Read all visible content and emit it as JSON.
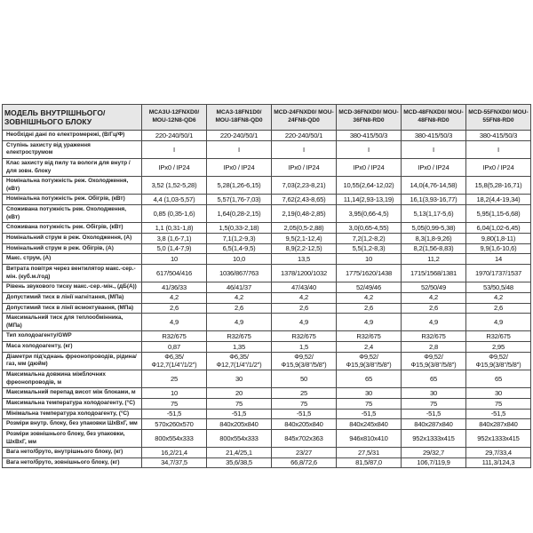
{
  "table": {
    "header": {
      "label": "МОДЕЛЬ ВНУТРІШНЬОГО/ЗОВНІШНЬОГО БЛОКУ",
      "models": [
        "MCA3U-12FNXD0/ MOU-12N8-QD6",
        "MCA3-18FN1D0/ MOU-18FN8-QD0",
        "MCD-24FNXD0/ MOU-24FN8-QD0",
        "MCD-36FNXD0/ MOU-36FN8-RD0",
        "MCD-48FNXD0/ MOU-48FN8-RD0",
        "MCD-55FNXD0/ MOU-55FN8-RD0"
      ]
    },
    "rows": [
      {
        "label": "Необхідні дані по електромережі, (В/Гц/Ф)",
        "values": [
          "220-240/50/1",
          "220-240/50/1",
          "220-240/50/1",
          "380-415/50/3",
          "380-415/50/3",
          "380-415/50/3"
        ]
      },
      {
        "label": "Ступінь захисту від ураження електрострумом",
        "values": [
          "I",
          "I",
          "I",
          "I",
          "I",
          "I"
        ]
      },
      {
        "label": "Клас захисту від пилу та вологи  для внутр / для зовн. блоку",
        "values": [
          "IPx0 / IP24",
          "IPx0 / IP24",
          "IPx0 / IP24",
          "IPx0 / IP24",
          "IPx0 / IP24",
          "IPx0 / IP24"
        ]
      },
      {
        "label": "Номінальна потужність реж. Охолодження, (кВт)",
        "values": [
          "3,52 (1,52-5,28)",
          "5,28(1,26-6,15)",
          "7,03(2,23-8,21)",
          "10,55(2,64-12,02)",
          "14,0(4,76-14,58)",
          "15,8(5,28-16,71)"
        ]
      },
      {
        "label": "Номінальна потужність реж. Обігрів, (кВт)",
        "values": [
          "4,4 (1,03-5,57)",
          "5,57(1,76-7,03)",
          "7,62(2,43-8,65)",
          "11,14(2,93-13,19)",
          "16,1(3,93-16,77)",
          "18,2(4,4-19,34)"
        ]
      },
      {
        "label": "Споживана потужність реж. Охолодження, (кВт)",
        "values": [
          "0,85 (0,35-1,6)",
          "1,64(0,28-2,15)",
          "2,19(0,48-2,85)",
          "3,95(0,66-4,5)",
          "5,13(1,17-5,6)",
          "5,95(1,15-6,68)"
        ]
      },
      {
        "label": "Споживана потужність реж. Обігрів, (кВт)",
        "values": [
          "1,1 (0,31-1,8)",
          "1,5(0,33-2,18)",
          "2,05(0,5-2,88)",
          "3,0(0,65-4,55)",
          "5,05(0,99-5,38)",
          "6,04(1,02-6,45)"
        ]
      },
      {
        "label": "Номінальний струм в реж. Охолодження, (А)",
        "values": [
          "3,8 (1,6-7,1)",
          "7,1(1,2-9,3)",
          "9,5(2,1-12,4)",
          "7,2(1,2-8,2)",
          "8,3(1,8-9,26)",
          "9,80(1,8-11)"
        ]
      },
      {
        "label": "Номінальний струм в реж. Обігрів, (А)",
        "values": [
          "5,0 (1,4-7,9)",
          "6,5(1,4-9,5)",
          "8,9(2,2-12,5)",
          "5,5(1,2-8,3)",
          "8,2(1,56-8,83)",
          "9,9(1,6-10,6)"
        ]
      },
      {
        "label": "Макс. струм, (А)",
        "values": [
          "10",
          "10,0",
          "13,5",
          "10",
          "11,2",
          "14"
        ]
      },
      {
        "label": "Витрата повітря через вентилятор макс.-сер.-мін. (куб.м./год)",
        "values": [
          "617/504/416",
          "1036/867/763",
          "1378/1200/1032",
          "1775/1620/1438",
          "1715/1568/1381",
          "1970/1737/1537"
        ]
      },
      {
        "label": "Рівень звукового тиску  макс.-сер.-мін., (дБ(А))",
        "values": [
          "41/36/33",
          "46/41/37",
          "47/43/40",
          "52/49/46",
          "52/50/49",
          "53/50,5/48"
        ]
      },
      {
        "label": "Допустимий тиск в лінії нагнітання, (МПа)",
        "values": [
          "4,2",
          "4,2",
          "4,2",
          "4,2",
          "4,2",
          "4,2"
        ]
      },
      {
        "label": "Допустимий тиск в лінії всмоктування, (МПа)",
        "values": [
          "2,6",
          "2,6",
          "2,6",
          "2,6",
          "2,6",
          "2,6"
        ]
      },
      {
        "label": "Максимальний тиск для теплообмінника, (МПа)",
        "values": [
          "4,9",
          "4,9",
          "4,9",
          "4,9",
          "4,9",
          "4,9"
        ]
      },
      {
        "label": "Тип холодоагенту/GWP",
        "values": [
          "R32/675",
          "R32/675",
          "R32/675",
          "R32/675",
          "R32/675",
          "R32/675"
        ]
      },
      {
        "label": "Маса холодоагенту, (кг)",
        "values": [
          "0,87",
          "1,35",
          "1,5",
          "2,4",
          "2,8",
          "2,95"
        ]
      },
      {
        "label": "Діаметри під'єднань фреонопроводів, рідина/газ, мм (дюйм)",
        "values": [
          "Ф6,35/\nФ12,7(1/4\"/1/2\")",
          "Ф6,35/\nФ12,7(1/4\"/1/2\")",
          "Ф9,52/Ф15,9(3/8\"/5/8\")",
          "Ф9,52/Ф15,9(3/8\"/5/8\")",
          "Ф9,52/Ф15,9(3/8\"/5/8\")",
          "Ф9,52/Ф15,9(3/8\"/5/8\")"
        ]
      },
      {
        "label": "Максимальна довжина міжблочних фреонопроводів, м",
        "values": [
          "25",
          "30",
          "50",
          "65",
          "65",
          "65"
        ]
      },
      {
        "label": "Максимальний перепад висот між блоками, м",
        "values": [
          "10",
          "20",
          "25",
          "30",
          "30",
          "30"
        ]
      },
      {
        "label": "Максимальна температура холодоагенту, (°С)",
        "values": [
          "75",
          "75",
          "75",
          "75",
          "75",
          "75"
        ]
      },
      {
        "label": "Мінімальна температура холодоагенту, (°С)",
        "values": [
          "-51,5",
          "-51,5",
          "-51,5",
          "-51,5",
          "-51,5",
          "-51,5"
        ]
      },
      {
        "label": "Розміри внутр. блоку, без упаковки ШхВхГ, мм",
        "values": [
          "570x260x570",
          "840x205x840",
          "840x205x840",
          "840x245x840",
          "840x287x840",
          "840x287x840"
        ]
      },
      {
        "label": "Розміри зовнішнього блоку, без упаковки, ШхВхГ, мм",
        "values": [
          "800x554x333",
          "800x554x333",
          "845x702x363",
          "946x810x410",
          "952x1333x415",
          "952x1333x415"
        ]
      },
      {
        "label": "Вага нето/бруто, внутрішнього блоку, (кг)",
        "values": [
          "16,2/21,4",
          "21,4/25,1",
          "23/27",
          "27,5/31",
          "29/32,7",
          "29,7/33,4"
        ]
      },
      {
        "label": "Вага нето/бруто, зовнішнього блоку, (кг)",
        "values": [
          "34,7/37,5",
          "35,6/38,5",
          "66,8/72,6",
          "81,5/87,0",
          "106,7/119,9",
          "111,3/124,3"
        ]
      }
    ]
  }
}
